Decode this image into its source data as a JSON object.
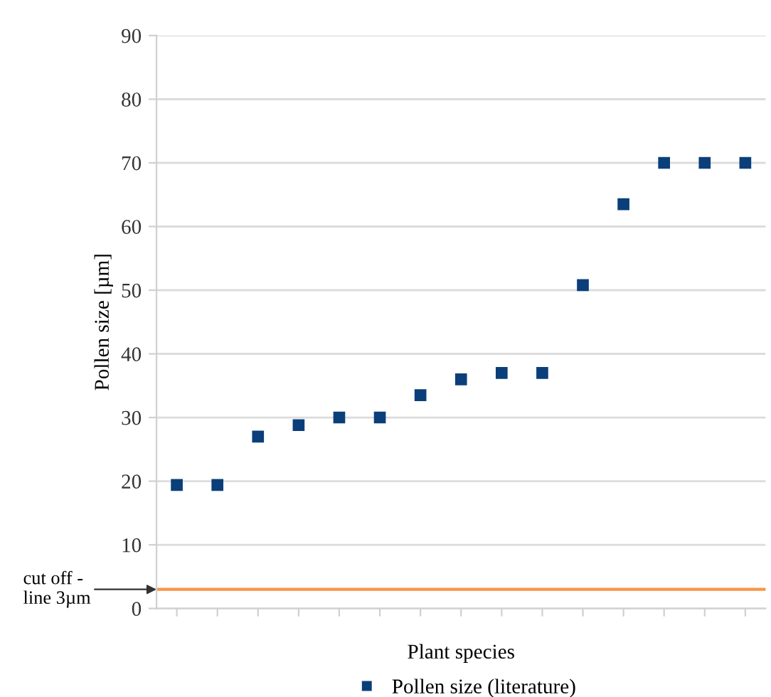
{
  "chart_data": {
    "type": "scatter",
    "xlabel": "Plant species",
    "ylabel": "Pollen size [µm]",
    "categories": [
      null,
      null,
      null,
      null,
      null,
      null,
      null,
      null,
      null,
      null,
      null,
      null,
      null,
      null,
      null
    ],
    "series": [
      {
        "name": "Pollen size (literature)",
        "color": "#0b3f7a",
        "values": [
          19.4,
          19.4,
          27,
          28.8,
          30,
          30,
          33.5,
          36,
          37,
          37,
          50.8,
          63.5,
          70,
          70,
          70
        ]
      }
    ],
    "ylim": [
      0,
      90
    ],
    "yticks": [
      0,
      10,
      20,
      30,
      40,
      50,
      60,
      70,
      80,
      90
    ],
    "ref_lines": [
      {
        "axis": "y",
        "value": 3,
        "label": "cut off -\nline 3µm",
        "color": "#f79646",
        "line_style": "solid"
      }
    ],
    "grid": "y",
    "legend": "bottom",
    "marker": "square",
    "tick_labels": "y"
  }
}
